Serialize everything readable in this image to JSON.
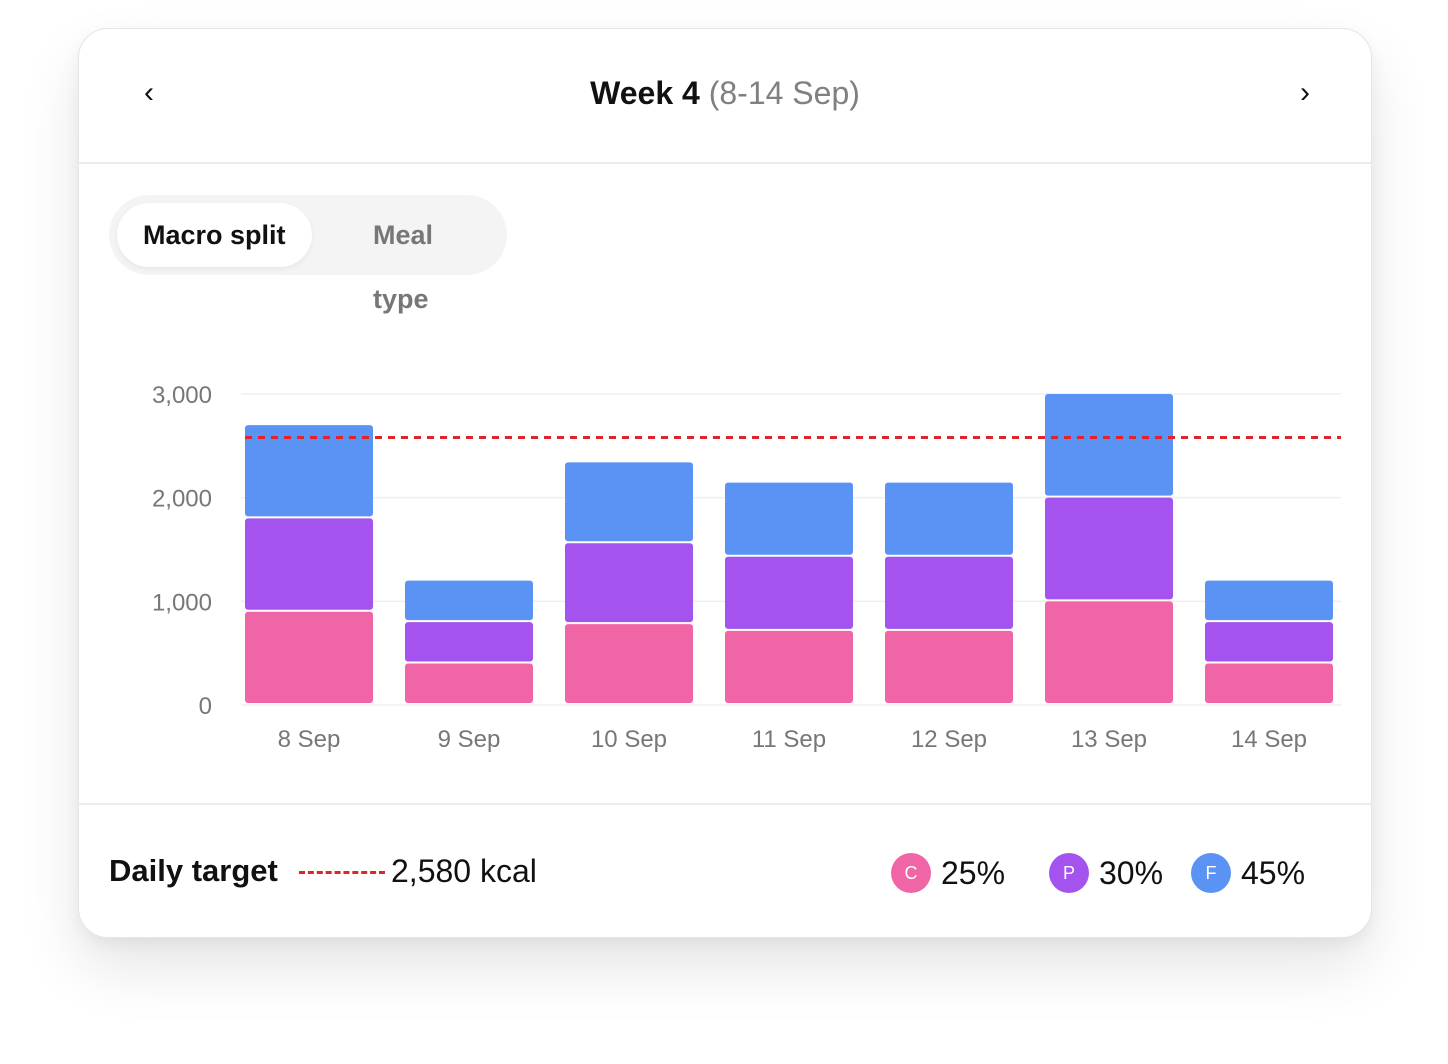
{
  "header": {
    "title_bold": "Week 4",
    "title_range": "(8-14 Sep)",
    "prev_icon": "chevron-left-icon",
    "next_icon": "chevron-right-icon",
    "prev_glyph": "‹",
    "next_glyph": "›"
  },
  "toggle": {
    "options": [
      "Macro split",
      "Meal type"
    ],
    "selected": "Macro split"
  },
  "chart_data": {
    "type": "bar",
    "stacked": true,
    "categories": [
      "8 Sep",
      "9 Sep",
      "10 Sep",
      "11 Sep",
      "12 Sep",
      "13 Sep",
      "14 Sep"
    ],
    "series": [
      {
        "key": "C",
        "color": "#f065a6",
        "values": [
          900,
          400,
          780,
          715,
          715,
          1000,
          400
        ]
      },
      {
        "key": "P",
        "color": "#a553ee",
        "values": [
          900,
          400,
          780,
          715,
          715,
          1000,
          400
        ]
      },
      {
        "key": "F",
        "color": "#5b93f5",
        "values": [
          900,
          400,
          780,
          715,
          715,
          1000,
          400
        ]
      }
    ],
    "ylim": [
      0,
      3000
    ],
    "yticks": [
      0,
      1000,
      2000,
      3000
    ],
    "ytick_labels": [
      "0",
      "1,000",
      "2,000",
      "3,000"
    ],
    "grid": true,
    "target_line": {
      "value": 2580,
      "color": "#e0242c",
      "style": "dashed"
    }
  },
  "footer": {
    "target_label": "Daily target",
    "target_value": "2,580 kcal",
    "legend": [
      {
        "letter": "C",
        "pct": "25%",
        "color": "#f065a6"
      },
      {
        "letter": "P",
        "pct": "30%",
        "color": "#a553ee"
      },
      {
        "letter": "F",
        "pct": "45%",
        "color": "#5b93f5"
      }
    ]
  }
}
